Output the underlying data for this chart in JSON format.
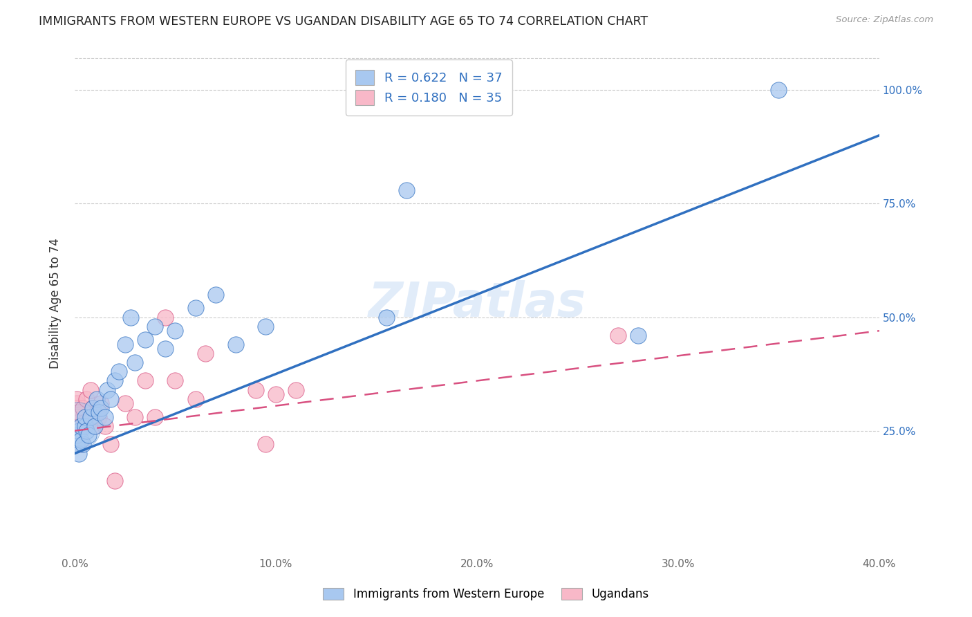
{
  "title": "IMMIGRANTS FROM WESTERN EUROPE VS UGANDAN DISABILITY AGE 65 TO 74 CORRELATION CHART",
  "source": "Source: ZipAtlas.com",
  "ylabel": "Disability Age 65 to 74",
  "xmin": 0.0,
  "xmax": 0.4,
  "ymin": -0.02,
  "ymax": 1.08,
  "x_tick_labels": [
    "0.0%",
    "10.0%",
    "20.0%",
    "30.0%",
    "40.0%"
  ],
  "x_tick_vals": [
    0.0,
    0.1,
    0.2,
    0.3,
    0.4
  ],
  "y_tick_labels": [
    "25.0%",
    "50.0%",
    "75.0%",
    "100.0%"
  ],
  "y_tick_vals": [
    0.25,
    0.5,
    0.75,
    1.0
  ],
  "blue_r": "0.622",
  "blue_n": "37",
  "pink_r": "0.180",
  "pink_n": "35",
  "blue_color": "#a8c8f0",
  "pink_color": "#f8b8c8",
  "blue_line_color": "#3070c0",
  "pink_line_color": "#d85080",
  "watermark": "ZIPatlas",
  "legend_label_blue": "Immigrants from Western Europe",
  "legend_label_pink": "Ugandans",
  "blue_x": [
    0.001,
    0.001,
    0.002,
    0.002,
    0.003,
    0.003,
    0.004,
    0.005,
    0.005,
    0.006,
    0.007,
    0.008,
    0.009,
    0.01,
    0.011,
    0.012,
    0.013,
    0.015,
    0.016,
    0.018,
    0.02,
    0.022,
    0.025,
    0.028,
    0.03,
    0.035,
    0.04,
    0.045,
    0.05,
    0.06,
    0.07,
    0.08,
    0.095,
    0.155,
    0.165,
    0.28,
    0.35
  ],
  "blue_y": [
    0.22,
    0.24,
    0.2,
    0.25,
    0.23,
    0.26,
    0.22,
    0.26,
    0.28,
    0.25,
    0.24,
    0.28,
    0.3,
    0.26,
    0.32,
    0.29,
    0.3,
    0.28,
    0.34,
    0.32,
    0.36,
    0.38,
    0.44,
    0.5,
    0.4,
    0.45,
    0.48,
    0.43,
    0.47,
    0.52,
    0.55,
    0.44,
    0.48,
    0.5,
    0.78,
    0.46,
    1.0
  ],
  "pink_x": [
    0.001,
    0.001,
    0.001,
    0.001,
    0.001,
    0.002,
    0.002,
    0.003,
    0.003,
    0.004,
    0.005,
    0.006,
    0.007,
    0.008,
    0.009,
    0.01,
    0.011,
    0.012,
    0.013,
    0.015,
    0.018,
    0.02,
    0.025,
    0.03,
    0.035,
    0.04,
    0.045,
    0.05,
    0.06,
    0.065,
    0.09,
    0.095,
    0.1,
    0.11,
    0.27
  ],
  "pink_y": [
    0.29,
    0.31,
    0.3,
    0.28,
    0.32,
    0.27,
    0.29,
    0.22,
    0.26,
    0.3,
    0.27,
    0.32,
    0.27,
    0.34,
    0.3,
    0.26,
    0.29,
    0.28,
    0.31,
    0.26,
    0.22,
    0.14,
    0.31,
    0.28,
    0.36,
    0.28,
    0.5,
    0.36,
    0.32,
    0.42,
    0.34,
    0.22,
    0.33,
    0.34,
    0.46
  ],
  "blue_large_x": [
    0.001
  ],
  "blue_large_y": [
    0.26
  ],
  "blue_large_size": 2500,
  "scatter_size": 280
}
